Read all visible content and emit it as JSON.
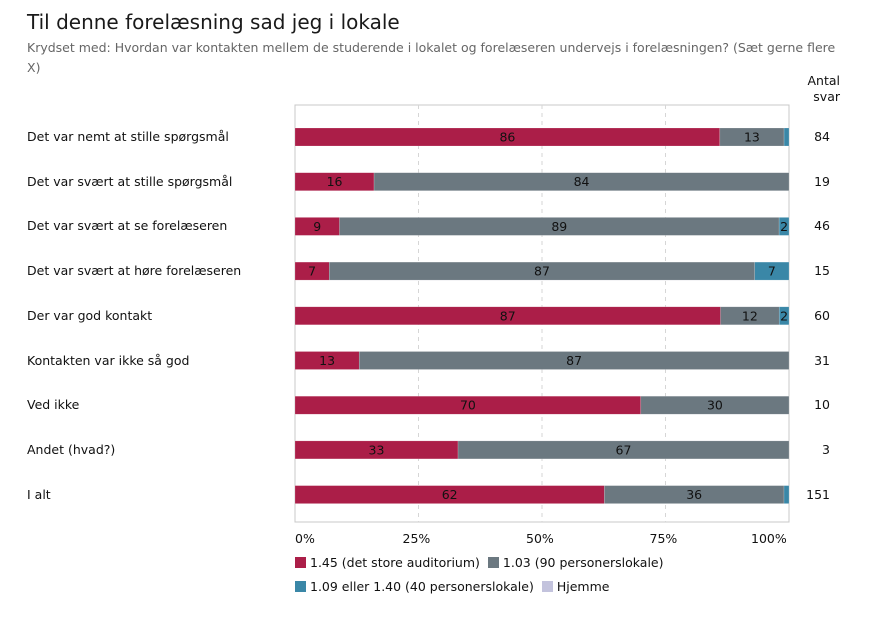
{
  "chart_data": {
    "type": "bar",
    "orientation": "horizontal",
    "stacked": true,
    "title": "Til denne forelæsning sad jeg i lokale",
    "subtitle": "Krydset med: Hvordan var kontakten mellem de studerende i lokalet og forelæseren undervejs i forelæsningen? (Sæt gerne flere X)",
    "count_header": "Antal svar",
    "xlabel": "",
    "ylabel": "",
    "xlim": [
      0,
      100
    ],
    "x_ticks": [
      "0%",
      "25%",
      "50%",
      "75%",
      "100%"
    ],
    "grid": true,
    "legend_position": "bottom",
    "categories": [
      "Det var nemt at stille spørgsmål",
      "Det var svært at stille spørgsmål",
      "Det var svært at se forelæseren",
      "Det var svært at høre forelæseren",
      "Der var god kontakt",
      "Kontakten var ikke så god",
      "Ved ikke",
      "Andet (hvad?)",
      "I alt"
    ],
    "counts": [
      "84",
      "19",
      "46",
      "15",
      "60",
      "31",
      "10",
      "3",
      "151"
    ],
    "series": [
      {
        "name": "1.45 (det store auditorium)",
        "color": "#ab1e48",
        "values": [
          86,
          16,
          9,
          7,
          87,
          13,
          70,
          33,
          62
        ],
        "labels": [
          "86",
          "16",
          "9",
          "7",
          "87",
          "13",
          "70",
          "33",
          "62"
        ]
      },
      {
        "name": "1.03 (90 personerslokale)",
        "color": "#6b7880",
        "values": [
          13,
          84,
          89,
          87,
          12,
          87,
          30,
          67,
          36
        ],
        "labels": [
          "13",
          "84",
          "89",
          "87",
          "12",
          "87",
          "30",
          "67",
          "36"
        ]
      },
      {
        "name": "1.09 eller 1.40 (40 personerslokale)",
        "color": "#3a87a7",
        "values": [
          1,
          0,
          2,
          7,
          2,
          0,
          0,
          0,
          1
        ],
        "labels": [
          "",
          "",
          "2",
          "7",
          "2",
          "",
          "",
          "",
          ""
        ]
      },
      {
        "name": "Hjemme",
        "color": "#c3c3dd",
        "values": [
          0,
          0,
          0,
          0,
          0,
          0,
          0,
          0,
          0
        ],
        "labels": [
          "",
          "",
          "",
          "",
          "",
          "",
          "",
          "",
          ""
        ]
      }
    ]
  }
}
